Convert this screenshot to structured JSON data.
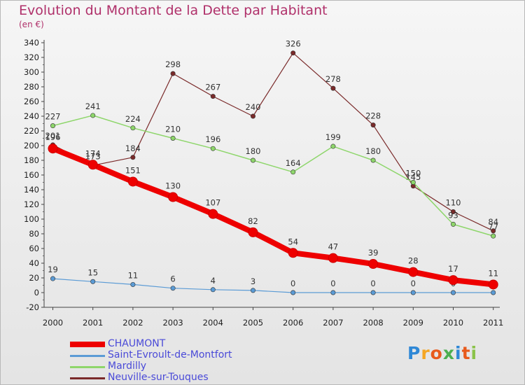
{
  "title": "Evolution du Montant de la Dette par Habitant",
  "subtitle": "(en €)",
  "logo": {
    "letters": [
      "P",
      "r",
      "o",
      "x",
      "i",
      "t",
      "i"
    ],
    "colors": [
      "#2f88d6",
      "#f5a623",
      "#e85a1c",
      "#4caf50",
      "#2f88d6",
      "#e85a1c",
      "#8bc34a"
    ]
  },
  "chart_data": {
    "type": "line",
    "x": [
      "2000",
      "2001",
      "2002",
      "2003",
      "2004",
      "2005",
      "2006",
      "2007",
      "2008",
      "2009",
      "2010",
      "2011"
    ],
    "yticks": [
      -20,
      0,
      20,
      40,
      60,
      80,
      100,
      120,
      140,
      160,
      180,
      200,
      220,
      240,
      260,
      280,
      300,
      320,
      340
    ],
    "ylim": [
      -20,
      340
    ],
    "grid": false,
    "legend_position": "bottom-left",
    "series": [
      {
        "name": "CHAUMONT",
        "color": "#ee0000",
        "width": 8,
        "values": [
          196,
          174,
          151,
          130,
          107,
          82,
          54,
          47,
          39,
          28,
          17,
          11
        ]
      },
      {
        "name": "Saint-Evroult-de-Montfort",
        "color": "#5b9bd5",
        "width": 1.2,
        "values": [
          19,
          15,
          11,
          6,
          4,
          3,
          0,
          0,
          0,
          0,
          0,
          0
        ]
      },
      {
        "name": "Mardilly",
        "color": "#8ed66b",
        "width": 1.5,
        "values": [
          227,
          241,
          224,
          210,
          196,
          180,
          164,
          199,
          180,
          150,
          93,
          77
        ]
      },
      {
        "name": "Neuville-sur-Touques",
        "color": "#7a2a2a",
        "width": 1.2,
        "values": [
          201,
          173,
          184,
          298,
          267,
          240,
          326,
          278,
          228,
          145,
          110,
          84
        ]
      }
    ]
  }
}
